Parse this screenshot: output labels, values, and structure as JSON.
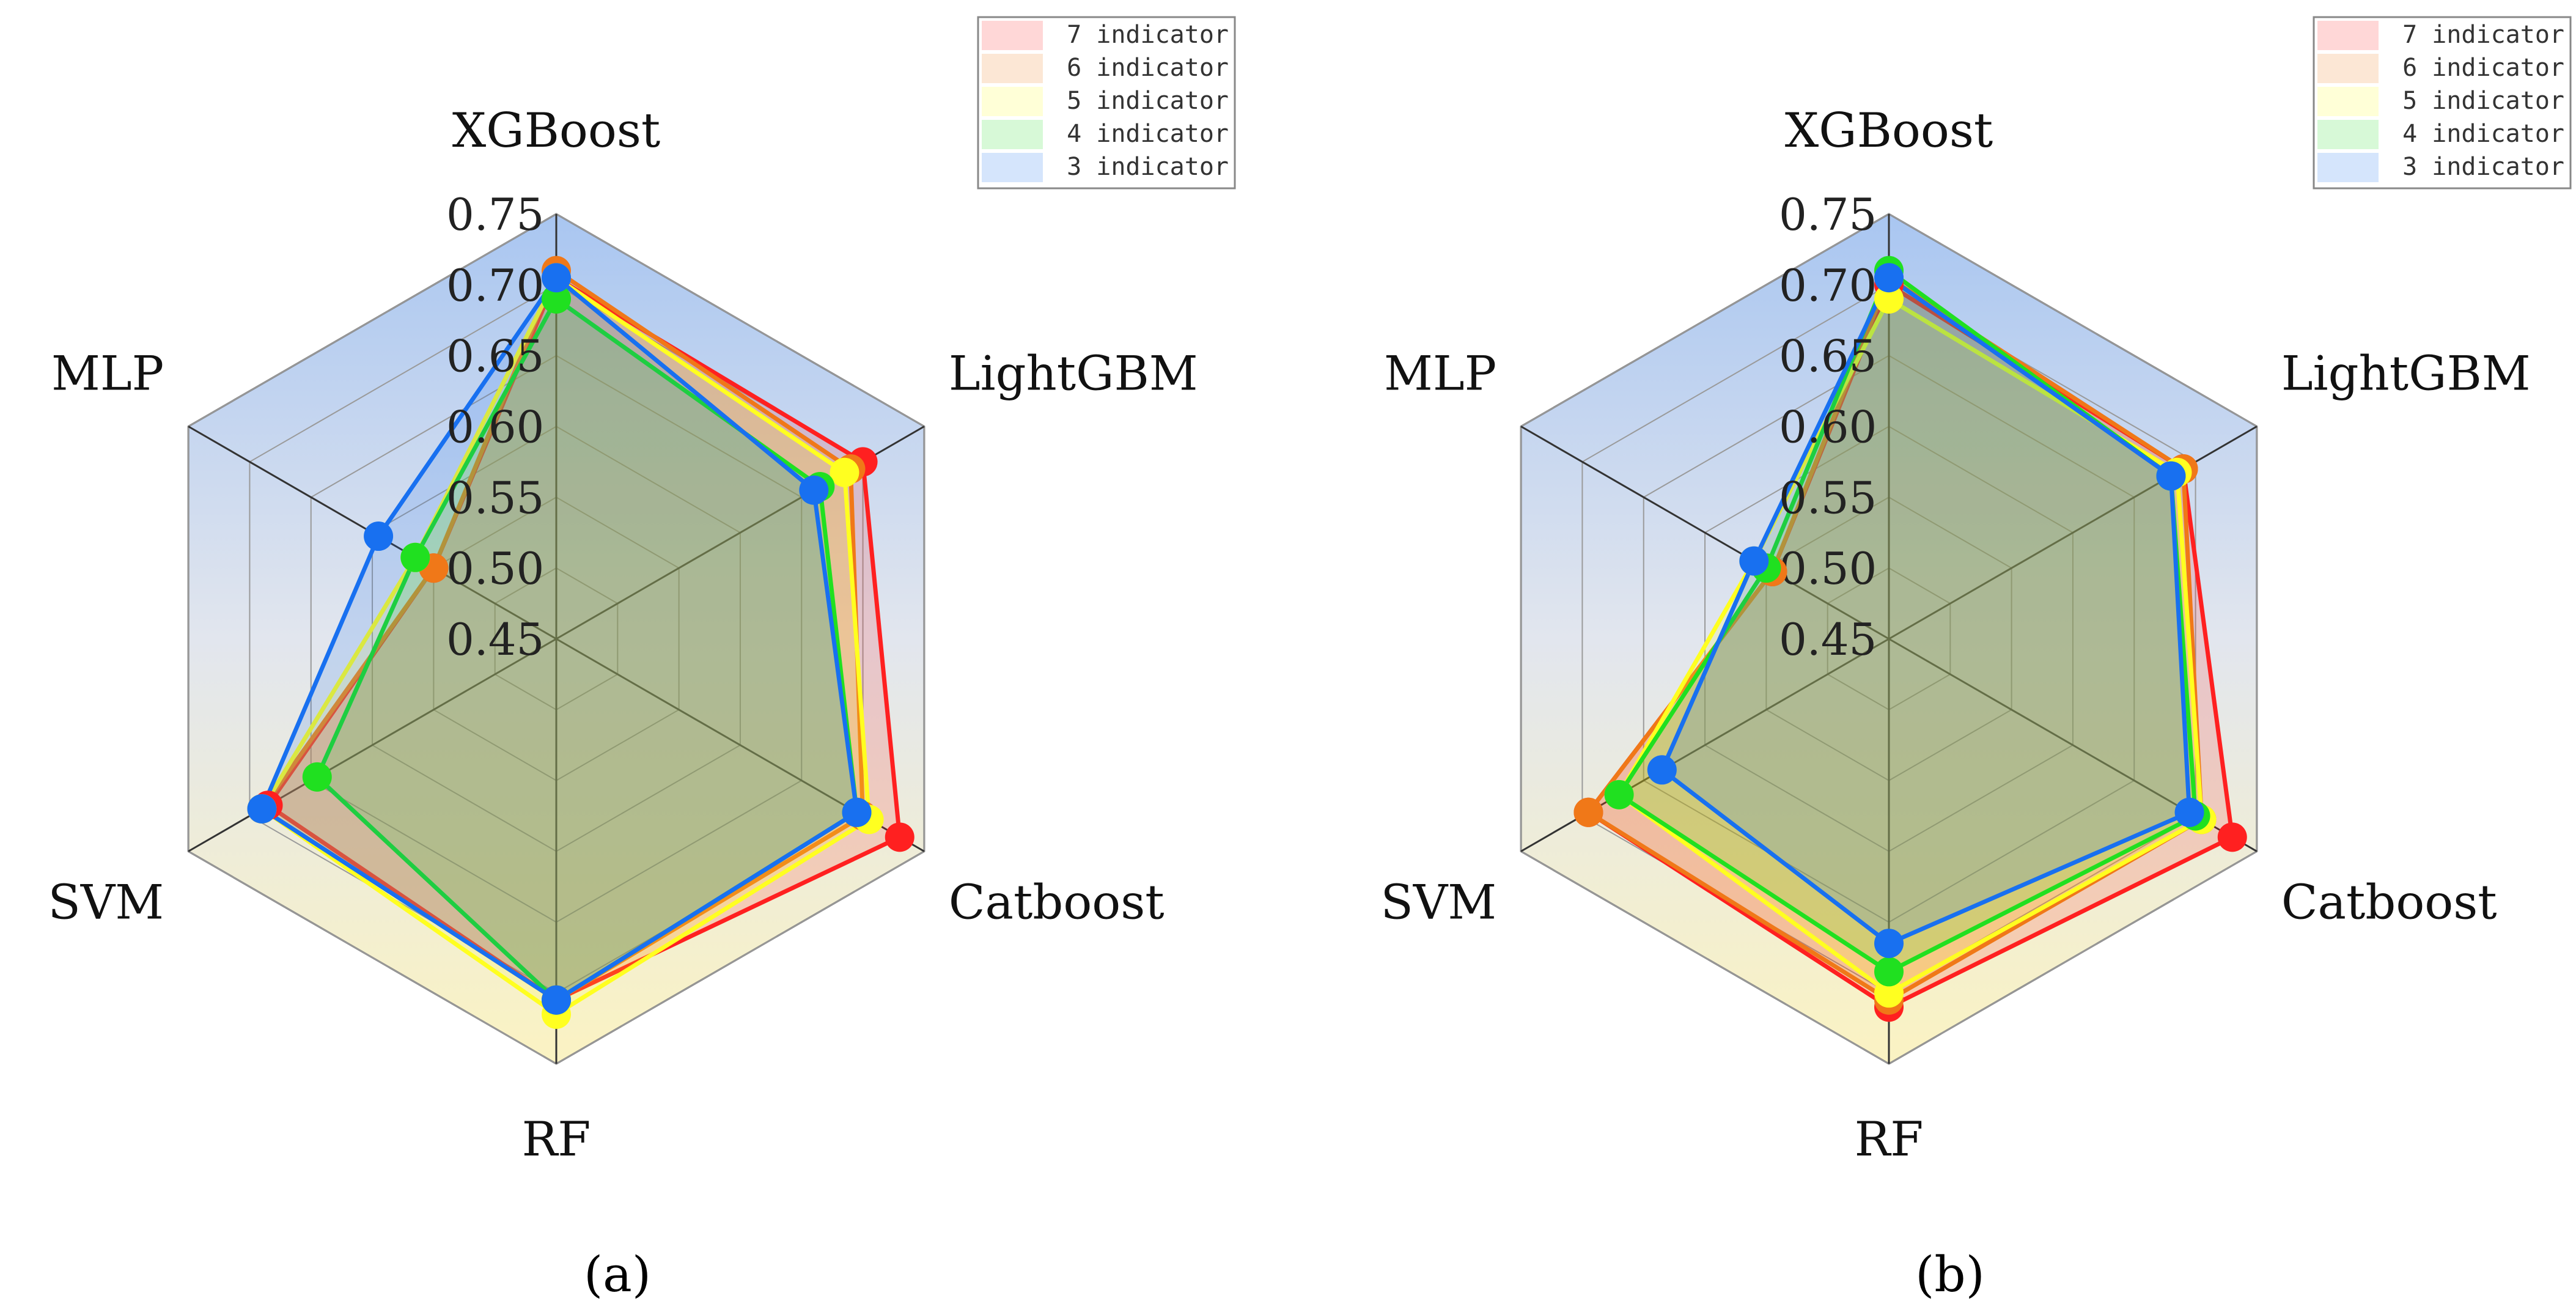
{
  "chart_data": [
    {
      "type": "radar",
      "panel_label": "(a)",
      "axes": [
        "XGBoost",
        "LightGBM",
        "Catboost",
        "RF",
        "SVM",
        "MLP"
      ],
      "rlim": [
        0.45,
        0.75
      ],
      "ticks": [
        0.45,
        0.5,
        0.55,
        0.6,
        0.65,
        0.7,
        0.75
      ],
      "tick_labels": [
        "0.45",
        "0.50",
        "0.55",
        "0.60",
        "0.65",
        "0.70",
        "0.75"
      ],
      "legend": [
        "7 indicator",
        "6 indicator",
        "5 indicator",
        "4 indicator",
        "3 indicator"
      ],
      "series": [
        {
          "name": "7 indicator",
          "color": "#ff2020",
          "values": [
            0.705,
            0.7,
            0.73,
            0.705,
            0.685,
            0.55
          ]
        },
        {
          "name": "6 indicator",
          "color": "#f07818",
          "values": [
            0.71,
            0.69,
            0.7,
            0.705,
            0.69,
            0.55
          ]
        },
        {
          "name": "5 indicator",
          "color": "#ffff20",
          "values": [
            0.705,
            0.685,
            0.705,
            0.715,
            0.69,
            0.565
          ]
        },
        {
          "name": "4 indicator",
          "color": "#20e020",
          "values": [
            0.69,
            0.665,
            0.695,
            0.705,
            0.645,
            0.565
          ]
        },
        {
          "name": "3 indicator",
          "color": "#1870f0",
          "values": [
            0.705,
            0.66,
            0.695,
            0.705,
            0.69,
            0.595
          ]
        }
      ]
    },
    {
      "type": "radar",
      "panel_label": "(b)",
      "axes": [
        "XGBoost",
        "LightGBM",
        "Catboost",
        "RF",
        "SVM",
        "MLP"
      ],
      "rlim": [
        0.45,
        0.75
      ],
      "ticks": [
        0.45,
        0.5,
        0.55,
        0.6,
        0.65,
        0.7,
        0.75
      ],
      "tick_labels": [
        "0.45",
        "0.50",
        "0.55",
        "0.60",
        "0.65",
        "0.70",
        "0.75"
      ],
      "legend": [
        "7 indicator",
        "6 indicator",
        "5 indicator",
        "4 indicator",
        "3 indicator"
      ],
      "series": [
        {
          "name": "7 indicator",
          "color": "#ff2020",
          "values": [
            0.7,
            0.69,
            0.73,
            0.71,
            0.695,
            0.545
          ]
        },
        {
          "name": "6 indicator",
          "color": "#f07818",
          "values": [
            0.705,
            0.69,
            0.705,
            0.705,
            0.695,
            0.545
          ]
        },
        {
          "name": "5 indicator",
          "color": "#ffff20",
          "values": [
            0.69,
            0.685,
            0.705,
            0.7,
            0.67,
            0.56
          ]
        },
        {
          "name": "4 indicator",
          "color": "#20e020",
          "values": [
            0.71,
            0.68,
            0.7,
            0.685,
            0.67,
            0.55
          ]
        },
        {
          "name": "3 indicator",
          "color": "#1870f0",
          "values": [
            0.705,
            0.68,
            0.695,
            0.665,
            0.635,
            0.56
          ]
        }
      ]
    }
  ]
}
